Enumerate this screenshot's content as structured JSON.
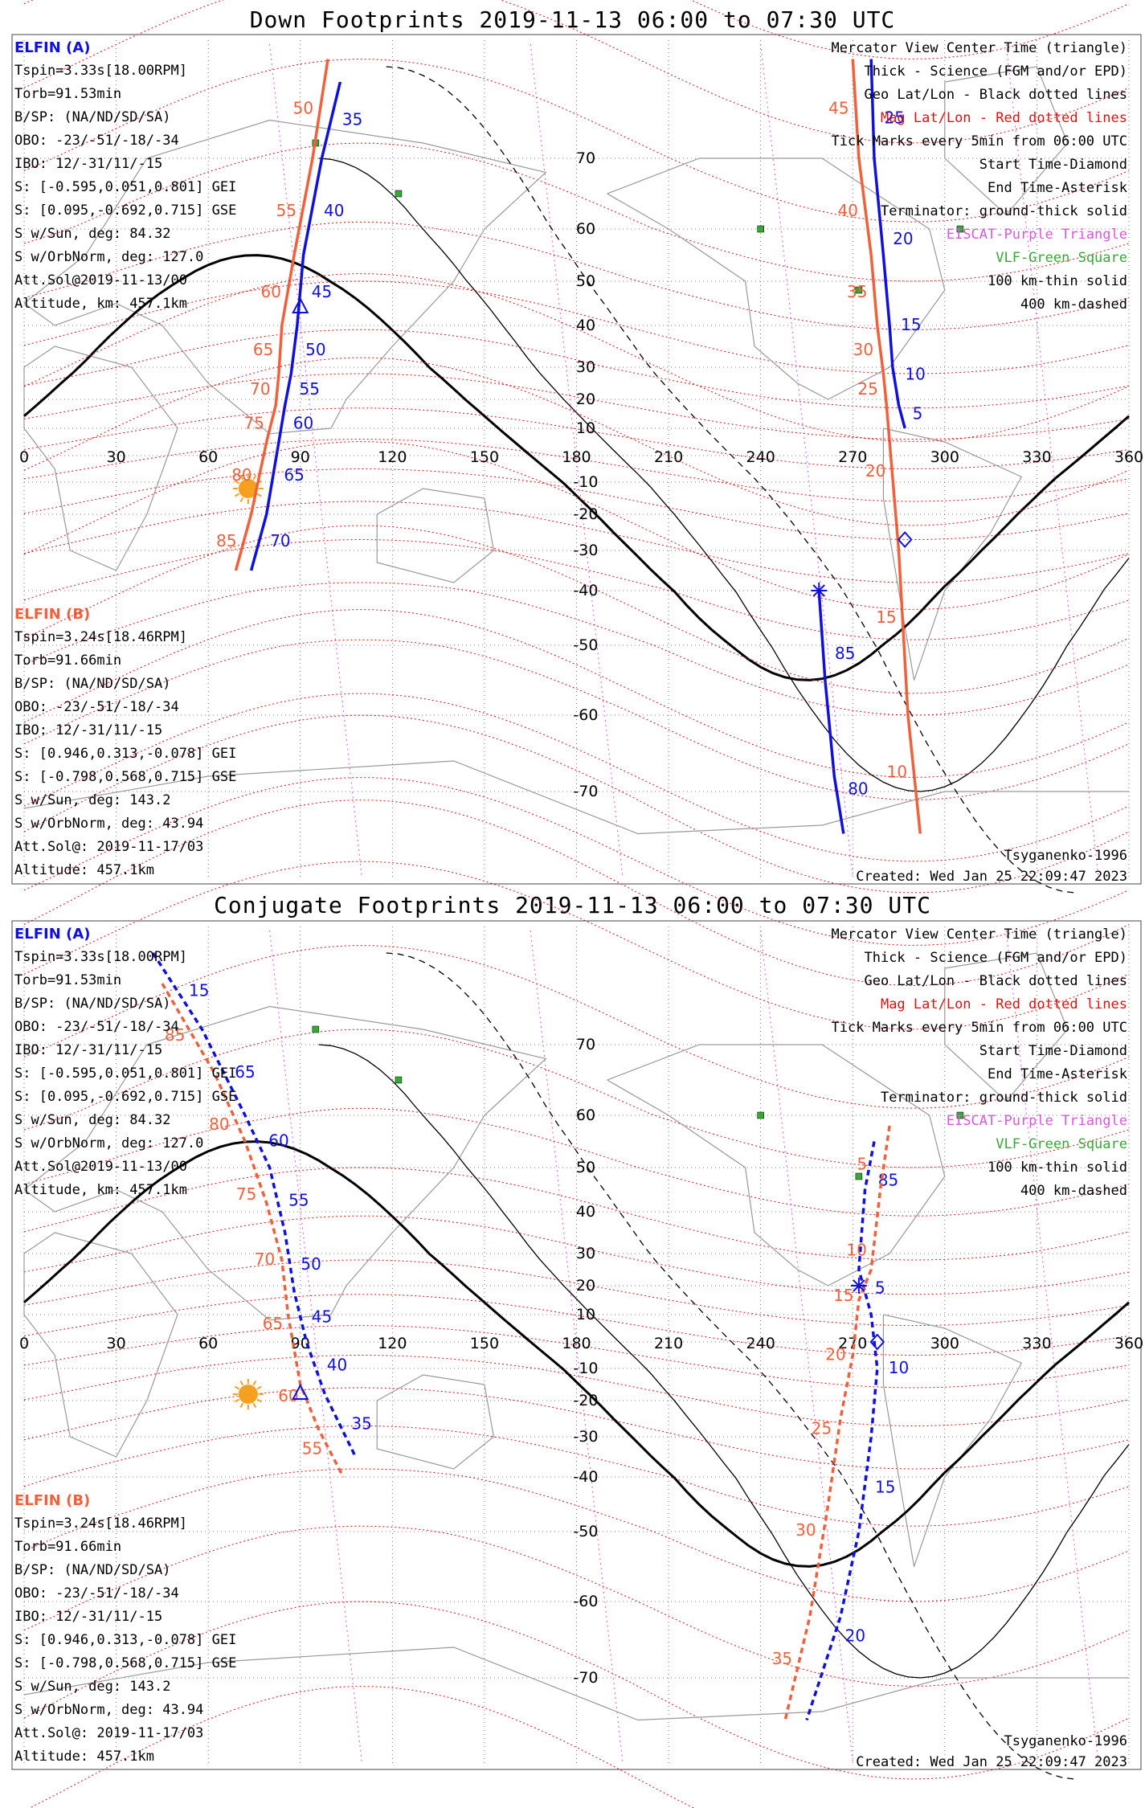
{
  "colors": {
    "elfin_a": "#1010dd",
    "elfin_b": "#f0603a",
    "mag_grid": "#e01010",
    "geo_grid": "#555555",
    "ebsat": "#dd55dd",
    "vlf": "#33aa33",
    "sun": "#f5a020",
    "land": "#999999"
  },
  "panels": [
    {
      "title": "Down Footprints 2019-11-13 06:00 to 07:30 UTC",
      "elfin_a": {
        "name": "ELFIN (A)",
        "lines": [
          "Tspin=3.33s[18.00RPM]",
          "Torb=91.53min",
          "B/SP: (NA/ND/SD/SA)",
          "OBO: -23/-51/-18/-34",
          "IBO: 12/-31/11/-15",
          "S: [-0.595,0.051,0.801] GEI",
          "S: [0.095,-0.692,0.715] GSE",
          "S w/Sun, deg: 84.32",
          "S w/OrbNorm, deg: 127.0",
          "Att.Sol@2019-11-13/00",
          "Altitude, km: 457.1km"
        ]
      },
      "elfin_b": {
        "name": "ELFIN (B)",
        "lines": [
          "Tspin=3.24s[18.46RPM]",
          "Torb=91.66min",
          "B/SP: (NA/ND/SD/SA)",
          "OBO: -23/-51/-18/-34",
          "IBO: 12/-31/11/-15",
          "S: [0.946,0.313,-0.078] GEI",
          "S: [-0.798,0.568,0.715] GSE",
          "S w/Sun, deg: 143.2",
          "S w/OrbNorm, deg: 43.94",
          "Att.Sol@: 2019-11-17/03",
          "Altitude: 457.1km"
        ]
      },
      "legend": [
        "Mercator View Center Time (triangle)",
        "Thick - Science (FGM and/or EPD)",
        "Geo Lat/Lon - Black dotted lines",
        "Mag Lat/Lon - Red dotted lines",
        "Tick Marks every 5min from 06:00 UTC",
        "Start Time-Diamond",
        "End Time-Asterisk",
        "Terminator: ground-thick solid",
        "EISCAT-Purple Triangle",
        "VLF-Green Square",
        "100 km-thin solid",
        "400 km-dashed"
      ],
      "model": "Tsyganenko-1996",
      "created": "Created: Wed Jan 25 22:09:47 2023"
    },
    {
      "title": "Conjugate Footprints 2019-11-13 06:00 to 07:30 UTC",
      "elfin_a": {
        "name": "ELFIN (A)",
        "lines": [
          "Tspin=3.33s[18.00RPM]",
          "Torb=91.53min",
          "B/SP: (NA/ND/SD/SA)",
          "OBO: -23/-51/-18/-34",
          "IBO: 12/-31/11/-15",
          "S: [-0.595,0.051,0.801] GEI",
          "S: [0.095,-0.692,0.715] GSE",
          "S w/Sun, deg: 84.32",
          "S w/OrbNorm, deg: 127.0",
          "Att.Sol@2019-11-13/00",
          "Altitude, km: 457.1km"
        ]
      },
      "elfin_b": {
        "name": "ELFIN (B)",
        "lines": [
          "Tspin=3.24s[18.46RPM]",
          "Torb=91.66min",
          "B/SP: (NA/ND/SD/SA)",
          "OBO: -23/-51/-18/-34",
          "IBO: 12/-31/11/-15",
          "S: [0.946,0.313,-0.078] GEI",
          "S: [-0.798,0.568,0.715] GSE",
          "S w/Sun, deg: 143.2",
          "S w/OrbNorm, deg: 43.94",
          "Att.Sol@: 2019-11-17/03",
          "Altitude: 457.1km"
        ]
      },
      "legend": [
        "Mercator View Center Time (triangle)",
        "Thick - Science (FGM and/or EPD)",
        "Geo Lat/Lon - Black dotted lines",
        "Mag Lat/Lon - Red dotted lines",
        "Tick Marks every 5min from 06:00 UTC",
        "Start Time-Diamond",
        "End Time-Asterisk",
        "Terminator: ground-thick solid",
        "EISCAT-Purple Triangle",
        "VLF-Green Square",
        "100 km-thin solid",
        "400 km-dashed"
      ],
      "model": "Tsyganenko-1996",
      "created": "Created: Wed Jan 25 22:09:47 2023"
    }
  ],
  "chart_data": [
    {
      "type": "line",
      "title": "Down Footprints 2019-11-13 06:00 to 07:30 UTC",
      "x_ticks": [
        0,
        30,
        60,
        90,
        120,
        150,
        180,
        210,
        240,
        270,
        300,
        330,
        360
      ],
      "y_ticks": [
        70,
        60,
        50,
        40,
        30,
        20,
        10,
        -10,
        -20,
        -30,
        -40,
        -50,
        -60,
        -70
      ],
      "xlim": [
        0,
        360
      ],
      "series": [
        {
          "name": "ELFIN (A)",
          "color_key": "elfin_a",
          "x": [
            103,
            97,
            91,
            89,
            87,
            85,
            83,
            79,
            74
          ],
          "y": [
            80,
            70,
            55,
            40,
            28,
            18,
            5,
            -20,
            -35
          ],
          "labels": [
            "35",
            "40",
            "45",
            "50",
            "55",
            "60",
            "65",
            "70"
          ]
        },
        {
          "name": "ELFIN (A)",
          "color_key": "elfin_a",
          "x": [
            276,
            277,
            280,
            282,
            283,
            285,
            287
          ],
          "y": [
            83,
            70,
            55,
            40,
            30,
            18,
            10
          ],
          "labels": [
            "25",
            "20",
            "15",
            "10",
            "5"
          ]
        },
        {
          "name": "ELFIN (A)",
          "color_key": "elfin_a",
          "x": [
            259,
            261,
            264,
            267
          ],
          "y": [
            -40,
            -55,
            -68,
            -75
          ],
          "labels": [
            "85",
            "80"
          ]
        },
        {
          "name": "ELFIN (B)",
          "color_key": "elfin_b",
          "x": [
            99,
            94,
            88,
            84,
            83,
            82,
            79,
            74,
            69
          ],
          "y": [
            83,
            70,
            55,
            40,
            28,
            18,
            5,
            -20,
            -35
          ],
          "labels": [
            "50",
            "55",
            "60",
            "65",
            "70",
            "75",
            "80",
            "85"
          ]
        },
        {
          "name": "ELFIN (B)",
          "color_key": "elfin_b",
          "x": [
            270,
            272,
            276,
            278,
            280,
            281,
            285,
            288,
            292
          ],
          "y": [
            83,
            70,
            55,
            40,
            28,
            18,
            -30,
            -60,
            -75
          ],
          "labels": [
            "45",
            "40",
            "35",
            "30",
            "25",
            "20",
            "15",
            "10"
          ]
        }
      ]
    },
    {
      "type": "line",
      "title": "Conjugate Footprints 2019-11-13 06:00 to 07:30 UTC",
      "x_ticks": [
        0,
        30,
        60,
        90,
        120,
        150,
        180,
        210,
        240,
        270,
        300,
        330,
        360
      ],
      "y_ticks": [
        70,
        60,
        50,
        40,
        30,
        20,
        10,
        -10,
        -20,
        -30,
        -40,
        -50,
        -60,
        -70
      ],
      "xlim": [
        0,
        360
      ],
      "series": [
        {
          "name": "ELFIN (A)",
          "color_key": "elfin_a",
          "x": [
            42,
            58,
            72,
            80,
            85,
            88,
            92,
            98,
            108
          ],
          "y": [
            82,
            72,
            60,
            50,
            35,
            18,
            0,
            -18,
            -35
          ],
          "labels": [
            "15",
            "65",
            "60",
            "55",
            "50",
            "45",
            "40",
            "35"
          ]
        },
        {
          "name": "ELFIN (A)",
          "color_key": "elfin_a",
          "x": [
            277,
            274,
            272,
            276,
            278,
            276,
            272,
            266,
            255
          ],
          "y": [
            55,
            45,
            25,
            10,
            -10,
            -30,
            -50,
            -62,
            -75
          ],
          "labels": [
            "85",
            "5",
            "10",
            "15",
            "20"
          ]
        },
        {
          "name": "ELFIN (B)",
          "color_key": "elfin_b",
          "x": [
            45,
            62,
            72,
            79,
            84,
            86,
            90,
            96,
            104
          ],
          "y": [
            78,
            66,
            55,
            42,
            28,
            10,
            -15,
            -28,
            -40
          ],
          "labels": [
            "85",
            "80",
            "75",
            "70",
            "65",
            "60",
            "55"
          ]
        },
        {
          "name": "ELFIN (B)",
          "color_key": "elfin_b",
          "x": [
            282,
            279,
            276,
            272,
            270,
            266,
            262,
            256,
            248
          ],
          "y": [
            58,
            45,
            25,
            15,
            -5,
            -25,
            -45,
            -62,
            -75
          ],
          "labels": [
            "5",
            "10",
            "15",
            "20",
            "25",
            "30",
            "35"
          ]
        }
      ]
    }
  ]
}
